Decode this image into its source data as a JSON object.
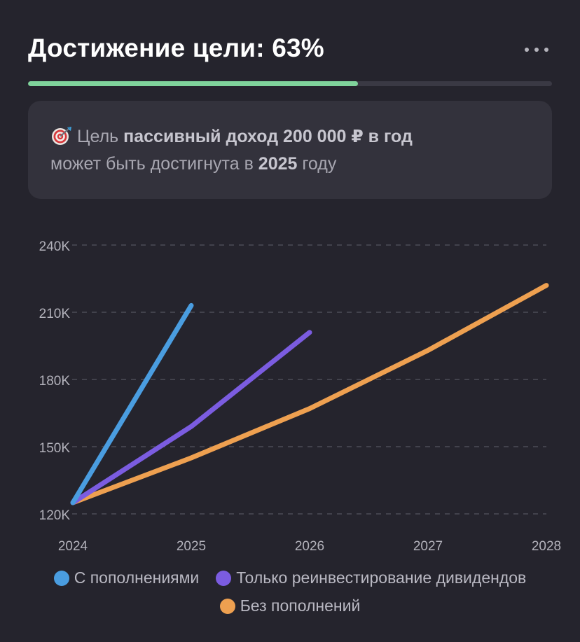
{
  "header": {
    "title": "Достижение цели: 63%",
    "menu_icon": "more-horizontal-icon"
  },
  "progress": {
    "value": 0.63,
    "fill_color": "#7fd39b",
    "track_color": "#3a3944"
  },
  "goal": {
    "icon": "target-dart-icon",
    "prefix": "Цель ",
    "name": "пассивный доход 200 000 ₽ в год",
    "line2_prefix": "может быть достигнута в ",
    "year": "2025",
    "line2_suffix": " году"
  },
  "chart_data": {
    "type": "line",
    "x": [
      2024,
      2025,
      2026,
      2027,
      2028
    ],
    "x_tick_labels": [
      "2024",
      "2025",
      "2026",
      "2027",
      "2028"
    ],
    "xlim": [
      2024,
      2028
    ],
    "ylim": [
      120000,
      240000
    ],
    "y_ticks": [
      120000,
      150000,
      180000,
      210000,
      240000
    ],
    "y_tick_labels": [
      "120K",
      "150K",
      "180K",
      "210K",
      "240K"
    ],
    "grid": "horizontal-dashed",
    "legend_position": "bottom",
    "series": [
      {
        "name": "С пополнениями",
        "color": "#4a9de0",
        "points": [
          [
            2024,
            125000
          ],
          [
            2025,
            213000
          ]
        ]
      },
      {
        "name": "Только реинвестирование дивидендов",
        "color": "#7b5ce0",
        "points": [
          [
            2024,
            125000
          ],
          [
            2025,
            159000
          ],
          [
            2026,
            201000
          ]
        ]
      },
      {
        "name": "Без пополнений",
        "color": "#eea050",
        "points": [
          [
            2024,
            125000
          ],
          [
            2025,
            145000
          ],
          [
            2026,
            167000
          ],
          [
            2027,
            193000
          ],
          [
            2028,
            222000
          ]
        ]
      }
    ]
  }
}
